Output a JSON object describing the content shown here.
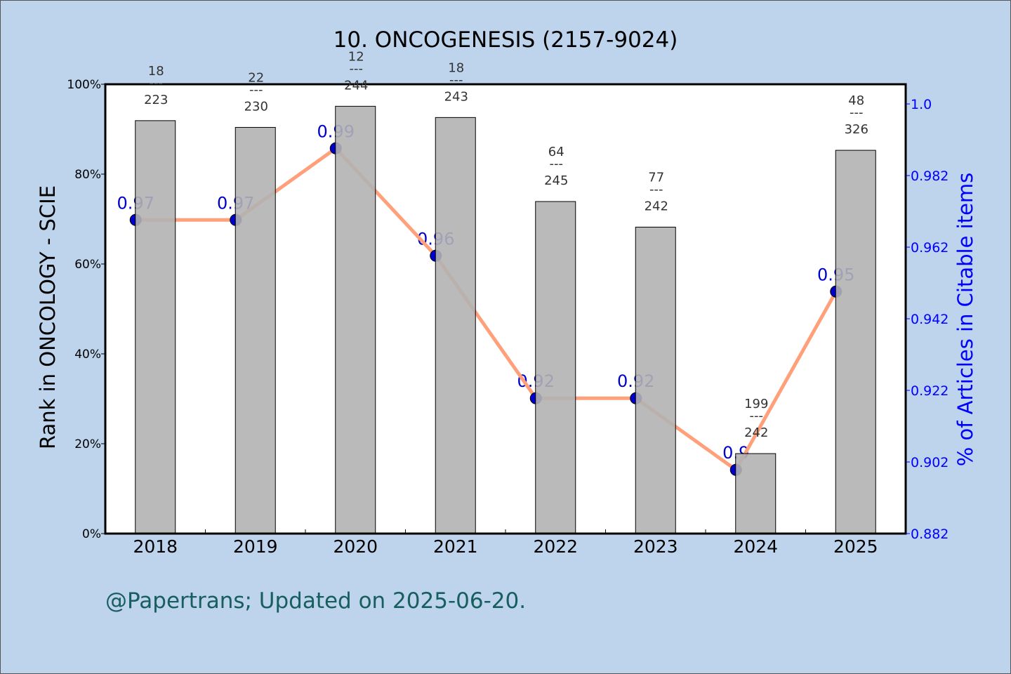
{
  "chart_data": {
    "type": "bar+line",
    "title": "10. ONCOGENESIS (2157-9024)",
    "ylabel": "Rank in ONCOLOGY - SCIE",
    "y2label": "% of Articles in Citable items",
    "categories": [
      "2018",
      "2019",
      "2020",
      "2021",
      "2022",
      "2023",
      "2024",
      "2025"
    ],
    "ylim": [
      0,
      100
    ],
    "yticks": [
      "0%",
      "20%",
      "40%",
      "60%",
      "80%",
      "100%"
    ],
    "y2lim": [
      0.882,
      1.0075
    ],
    "y2ticks": [
      "0.882",
      "0.902",
      "0.922",
      "0.942",
      "0.962",
      "0.982",
      "1.0"
    ],
    "y2tick_values": [
      0.882,
      0.902,
      0.922,
      0.942,
      0.962,
      0.982,
      1.002
    ],
    "bars": {
      "rank": [
        18,
        22,
        12,
        18,
        64,
        77,
        199,
        48
      ],
      "total": [
        223,
        230,
        244,
        243,
        245,
        242,
        242,
        326
      ],
      "values_percent": [
        91.9,
        90.4,
        95.1,
        92.6,
        73.9,
        68.2,
        17.8,
        85.3
      ],
      "color": "#b3b3b3"
    },
    "line": {
      "values": [
        0.9696,
        0.9696,
        0.9896,
        0.9596,
        0.9198,
        0.9198,
        0.8998,
        0.9496
      ],
      "labels": [
        "0.97",
        "0.97",
        "0.99",
        "0.96",
        "0.92",
        "0.92",
        "0.9",
        "0.95"
      ],
      "line_color": "#ffa07a",
      "marker_color": "#0000cd"
    },
    "footer": "@Papertrans; Updated on 2025-06-20.",
    "colors": {
      "background": "#bed3ec",
      "right_axis": "#0000ff",
      "footer": "#175e5e"
    }
  }
}
